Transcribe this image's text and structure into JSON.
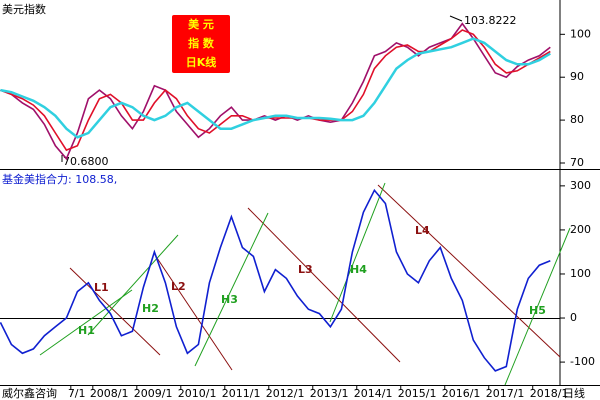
{
  "chart_data": [
    {
      "type": "line",
      "title": "美元指数",
      "box_label": [
        "美 元",
        "指 数",
        "日K线"
      ],
      "annotations": [
        "103.8222",
        "70.6800"
      ],
      "xlim": [
        2005.89,
        2018.62
      ],
      "ylim": [
        68.6,
        108
      ],
      "yticks": [
        70,
        80,
        90,
        100
      ],
      "x": [
        2005.9,
        2006.15,
        2006.4,
        2006.65,
        2006.9,
        2007.15,
        2007.4,
        2007.65,
        2007.9,
        2008.15,
        2008.4,
        2008.65,
        2008.9,
        2009.15,
        2009.4,
        2009.65,
        2009.9,
        2010.15,
        2010.4,
        2010.65,
        2010.9,
        2011.15,
        2011.4,
        2011.65,
        2011.9,
        2012.15,
        2012.4,
        2012.65,
        2012.9,
        2013.15,
        2013.4,
        2013.65,
        2013.9,
        2014.15,
        2014.4,
        2014.65,
        2014.9,
        2015.15,
        2015.4,
        2015.65,
        2015.9,
        2016.15,
        2016.4,
        2016.65,
        2016.9,
        2017.15,
        2017.4,
        2017.65,
        2017.9,
        2018.15,
        2018.4
      ],
      "series": [
        {
          "color": "#a0106a",
          "values": [
            87,
            86,
            84,
            82.5,
            79,
            74,
            71,
            77,
            85,
            87,
            85,
            81,
            78,
            82,
            88,
            87,
            82,
            79,
            76,
            78,
            81,
            83,
            80,
            80,
            81,
            80,
            81,
            80,
            81,
            80,
            79.5,
            80,
            84,
            89,
            95,
            96,
            98,
            97,
            95,
            97,
            98,
            99,
            102.5,
            99,
            95,
            91,
            90,
            92.5,
            94,
            95,
            97
          ]
        },
        {
          "color": "#e0102a",
          "values": [
            87,
            86,
            85,
            83.5,
            81,
            77,
            73,
            74,
            80,
            85,
            86,
            84,
            80,
            80,
            84,
            87,
            85,
            81,
            78,
            77,
            79,
            81,
            81,
            80,
            80.5,
            80.5,
            80.5,
            80.5,
            80.5,
            80,
            80,
            80,
            82,
            86,
            92,
            95,
            97,
            97.5,
            96,
            96,
            97.5,
            99,
            101,
            100,
            97,
            93,
            91,
            91.5,
            93,
            94.5,
            96
          ]
        },
        {
          "color": "#30d0e0",
          "values": [
            87,
            86.5,
            85.5,
            84.5,
            83,
            81,
            78,
            76,
            77,
            80,
            83,
            84,
            83,
            81,
            80,
            81,
            83,
            84,
            82,
            80,
            78,
            78,
            79,
            80,
            80.5,
            81,
            81,
            80.5,
            80.5,
            80.5,
            80.3,
            80,
            80,
            81,
            84,
            88,
            92,
            94,
            95.5,
            96,
            96.5,
            97,
            98,
            99,
            98,
            96,
            94,
            93,
            93,
            94,
            95.5
          ]
        }
      ]
    },
    {
      "type": "line",
      "title": "基金美指合力: 108.58,",
      "trend_labels": [
        "L1",
        "L2",
        "L3",
        "L4",
        "H1",
        "H2",
        "H3",
        "H4",
        "H5"
      ],
      "xlim": [
        2005.89,
        2018.62
      ],
      "ylim": [
        -152,
        336
      ],
      "yticks": [
        300,
        200,
        100,
        0,
        -100
      ],
      "xlabel_left": "威尔鑫咨询",
      "xlabel_right": "日线",
      "xticks": [
        {
          "value": 2007.5,
          "label": "7/1"
        },
        {
          "value": 2008,
          "label": "2008/1"
        },
        {
          "value": 2009,
          "label": "2009/1"
        },
        {
          "value": 2010,
          "label": "2010/1"
        },
        {
          "value": 2011,
          "label": "2011/1"
        },
        {
          "value": 2012,
          "label": "2012/1"
        },
        {
          "value": 2013,
          "label": "2013/1"
        },
        {
          "value": 2014,
          "label": "2014/1"
        },
        {
          "value": 2015,
          "label": "2015/1"
        },
        {
          "value": 2016,
          "label": "2016/1"
        },
        {
          "value": 2017,
          "label": "2017/1"
        },
        {
          "value": 2018,
          "label": "2018/1"
        }
      ],
      "x": [
        2005.9,
        2006.15,
        2006.4,
        2006.65,
        2006.9,
        2007.15,
        2007.4,
        2007.65,
        2007.9,
        2008.15,
        2008.4,
        2008.65,
        2008.9,
        2009.15,
        2009.4,
        2009.65,
        2009.9,
        2010.15,
        2010.4,
        2010.65,
        2010.9,
        2011.15,
        2011.4,
        2011.65,
        2011.9,
        2012.15,
        2012.4,
        2012.65,
        2012.9,
        2013.15,
        2013.4,
        2013.65,
        2013.9,
        2014.15,
        2014.4,
        2014.65,
        2014.9,
        2015.15,
        2015.4,
        2015.65,
        2015.9,
        2016.15,
        2016.4,
        2016.65,
        2016.9,
        2017.15,
        2017.4,
        2017.65,
        2017.9,
        2018.15,
        2018.4
      ],
      "series": [
        {
          "color": "#1020d0",
          "values": [
            -10,
            -60,
            -80,
            -70,
            -40,
            -20,
            0,
            60,
            80,
            40,
            10,
            -40,
            -30,
            70,
            150,
            80,
            -20,
            -80,
            -60,
            80,
            160,
            230,
            160,
            140,
            60,
            110,
            90,
            50,
            20,
            10,
            -20,
            20,
            150,
            240,
            290,
            260,
            150,
            100,
            80,
            130,
            160,
            90,
            40,
            -50,
            -90,
            -120,
            -110,
            20,
            90,
            120,
            130
          ]
        }
      ]
    }
  ]
}
